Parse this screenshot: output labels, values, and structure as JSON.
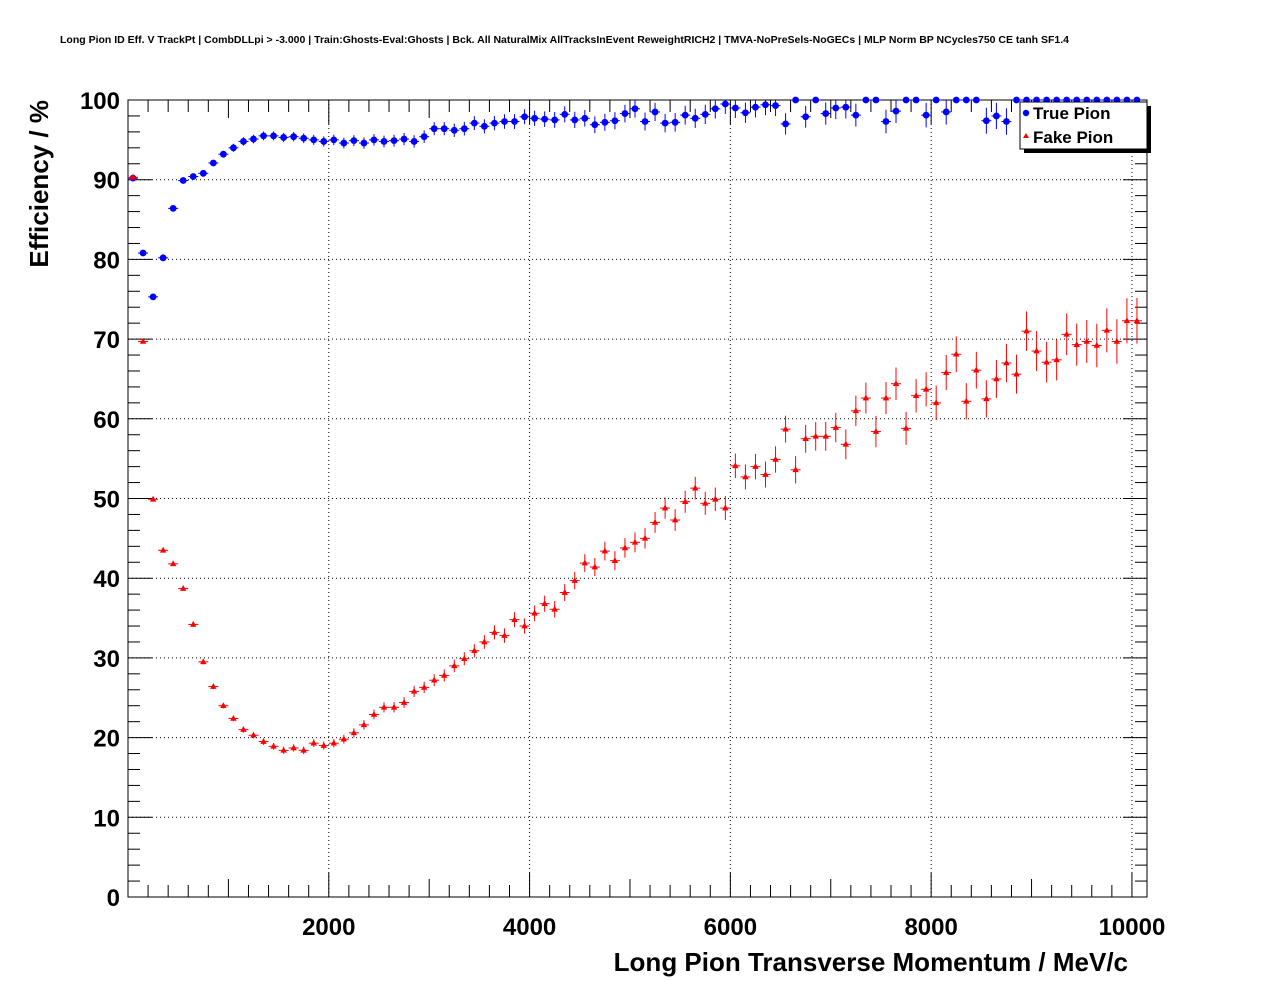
{
  "chart_data": {
    "type": "scatter",
    "title": "Long Pion ID Eff. V TrackPt | CombDLLpi > -3.000 | Train:Ghosts-Eval:Ghosts | Bck. All NaturalMix AllTracksInEvent ReweightRICH2 | TMVA-NoPreSels-NoGECs | MLP Norm BP NCycles750 CE tanh SF1.4",
    "xlabel": "Long Pion Transverse Momentum / MeV/c",
    "ylabel": "Efficiency / %",
    "xlim": [
      0,
      10150
    ],
    "ylim": [
      0,
      100
    ],
    "xticks": [
      2000,
      4000,
      6000,
      8000,
      10000
    ],
    "yticks": [
      0,
      10,
      20,
      30,
      40,
      50,
      60,
      70,
      80,
      90,
      100
    ],
    "grid": true,
    "legend_position": "top-right",
    "series": [
      {
        "name": "True Pion",
        "color": "#0000ff",
        "marker": "circle",
        "x": [
          50,
          150,
          250,
          350,
          450,
          550,
          650,
          750,
          850,
          950,
          1050,
          1150,
          1250,
          1350,
          1450,
          1550,
          1650,
          1750,
          1850,
          1950,
          2050,
          2150,
          2250,
          2350,
          2450,
          2550,
          2650,
          2750,
          2850,
          2950,
          3050,
          3150,
          3250,
          3350,
          3450,
          3550,
          3650,
          3750,
          3850,
          3950,
          4050,
          4150,
          4250,
          4350,
          4450,
          4550,
          4650,
          4750,
          4850,
          4950,
          5050,
          5150,
          5250,
          5350,
          5450,
          5550,
          5650,
          5750,
          5850,
          5950,
          6050,
          6150,
          6250,
          6350,
          6450,
          6550,
          6650,
          6750,
          6850,
          6950,
          7050,
          7150,
          7250,
          7350,
          7450,
          7550,
          7650,
          7750,
          7850,
          7950,
          8050,
          8150,
          8250,
          8350,
          8450,
          8550,
          8650,
          8750,
          8850,
          8950,
          9050,
          9150,
          9250,
          9350,
          9450,
          9550,
          9650,
          9750,
          9850,
          9950,
          10050
        ],
        "y": [
          90.2,
          80.8,
          75.3,
          80.2,
          86.4,
          89.9,
          90.4,
          90.8,
          92.1,
          93.2,
          94.0,
          94.8,
          95.1,
          95.5,
          95.5,
          95.3,
          95.4,
          95.2,
          95.0,
          94.8,
          95.0,
          94.6,
          94.9,
          94.6,
          95.0,
          94.8,
          94.9,
          95.1,
          94.8,
          95.4,
          96.4,
          96.4,
          96.2,
          96.4,
          97.1,
          96.7,
          97.1,
          97.3,
          97.3,
          97.9,
          97.7,
          97.6,
          97.5,
          98.2,
          97.5,
          97.7,
          96.9,
          97.2,
          97.4,
          98.3,
          98.9,
          97.3,
          98.5,
          97.1,
          97.2,
          98.1,
          97.7,
          98.2,
          98.9,
          99.5,
          99.0,
          98.4,
          99.1,
          99.4,
          99.3,
          97.0,
          100,
          97.9,
          100,
          98.3,
          99.0,
          99.1,
          98.1,
          100,
          100,
          97.3,
          98.6,
          100,
          100,
          98.1,
          100,
          98.5,
          100,
          100,
          100,
          97.4,
          98.0,
          97.3,
          100,
          100,
          100,
          100,
          100,
          100,
          100,
          100,
          100,
          100,
          100,
          100,
          100
        ]
      },
      {
        "name": "Fake Pion",
        "color": "#ff0000",
        "marker": "triangle",
        "x": [
          50,
          150,
          250,
          350,
          450,
          550,
          650,
          750,
          850,
          950,
          1050,
          1150,
          1250,
          1350,
          1450,
          1550,
          1650,
          1750,
          1850,
          1950,
          2050,
          2150,
          2250,
          2350,
          2450,
          2550,
          2650,
          2750,
          2850,
          2950,
          3050,
          3150,
          3250,
          3350,
          3450,
          3550,
          3650,
          3750,
          3850,
          3950,
          4050,
          4150,
          4250,
          4350,
          4450,
          4550,
          4650,
          4750,
          4850,
          4950,
          5050,
          5150,
          5250,
          5350,
          5450,
          5550,
          5650,
          5750,
          5850,
          5950,
          6050,
          6150,
          6250,
          6350,
          6450,
          6550,
          6650,
          6750,
          6850,
          6950,
          7050,
          7150,
          7250,
          7350,
          7450,
          7550,
          7650,
          7750,
          7850,
          7950,
          8050,
          8150,
          8250,
          8350,
          8450,
          8550,
          8650,
          8750,
          8850,
          8950,
          9050,
          9150,
          9250,
          9350,
          9450,
          9550,
          9650,
          9750,
          9850,
          9950,
          10050
        ],
        "y": [
          90.3,
          69.7,
          49.9,
          43.5,
          41.8,
          38.7,
          34.2,
          29.5,
          26.4,
          24.0,
          22.4,
          21.0,
          20.3,
          19.5,
          18.9,
          18.4,
          18.7,
          18.4,
          19.3,
          19.0,
          19.3,
          19.8,
          20.6,
          21.6,
          22.9,
          23.8,
          23.8,
          24.4,
          25.8,
          26.3,
          27.2,
          27.8,
          29.0,
          29.9,
          30.9,
          32.0,
          33.2,
          32.8,
          34.8,
          34.0,
          35.6,
          36.8,
          36.1,
          38.2,
          39.7,
          41.9,
          41.4,
          43.4,
          42.2,
          43.8,
          44.5,
          45.0,
          47.0,
          48.8,
          47.3,
          49.6,
          51.3,
          49.4,
          49.9,
          48.8,
          54.1,
          52.7,
          54.0,
          53.0,
          54.9,
          58.7,
          53.6,
          57.5,
          57.8,
          57.8,
          58.9,
          56.8,
          61.0,
          62.6,
          58.4,
          62.6,
          64.4,
          58.8,
          62.9,
          63.7,
          62.0,
          65.8,
          68.1,
          62.2,
          66.1,
          62.5,
          65.0,
          67.0,
          65.6,
          71.0,
          68.5,
          67.1,
          67.4,
          70.6,
          69.3,
          69.7,
          69.2,
          71.1,
          69.7,
          72.3,
          72.3
        ],
        "error_style": "crosses, growing with x"
      }
    ]
  }
}
